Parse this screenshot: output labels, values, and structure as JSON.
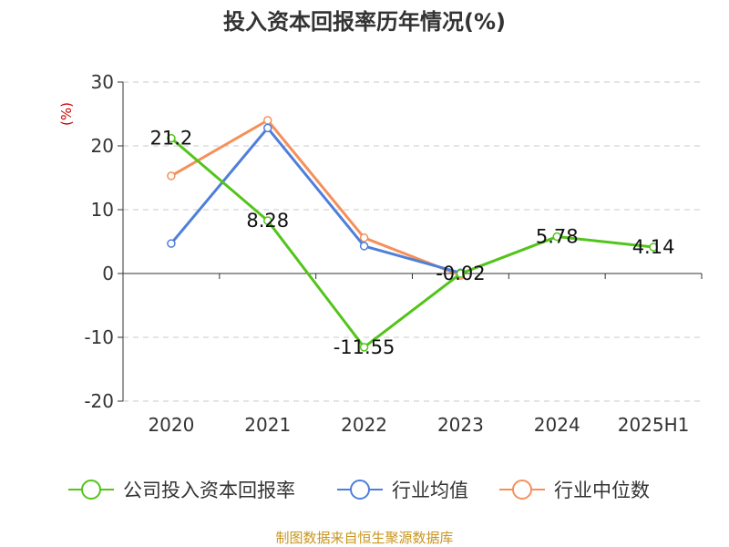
{
  "chart_data": {
    "type": "line",
    "title": "投入资本回报率历年情况(%)",
    "unit_label": "(%)",
    "categories": [
      "2020",
      "2021",
      "2022",
      "2023",
      "2024",
      "2025H1"
    ],
    "ylim": [
      -20,
      30
    ],
    "yticks": [
      30,
      20,
      10,
      0,
      -10,
      -20
    ],
    "grid": true,
    "legend_position": "bottom",
    "series": [
      {
        "name": "公司投入资本回报率",
        "color": "#52c41a",
        "values": [
          21.2,
          8.28,
          -11.55,
          -0.02,
          5.78,
          4.14
        ],
        "labels": [
          "21.2",
          "8.28",
          "-11.55",
          "-0.02",
          "5.78",
          "4.14"
        ]
      },
      {
        "name": "行业均值",
        "color": "#4f7fd9",
        "values": [
          4.7,
          22.8,
          4.3,
          0.1,
          null,
          null
        ]
      },
      {
        "name": "行业中位数",
        "color": "#f5905a",
        "values": [
          15.3,
          24.0,
          5.6,
          -0.3,
          null,
          null
        ]
      }
    ]
  },
  "source": "制图数据来自恒生聚源数据库"
}
